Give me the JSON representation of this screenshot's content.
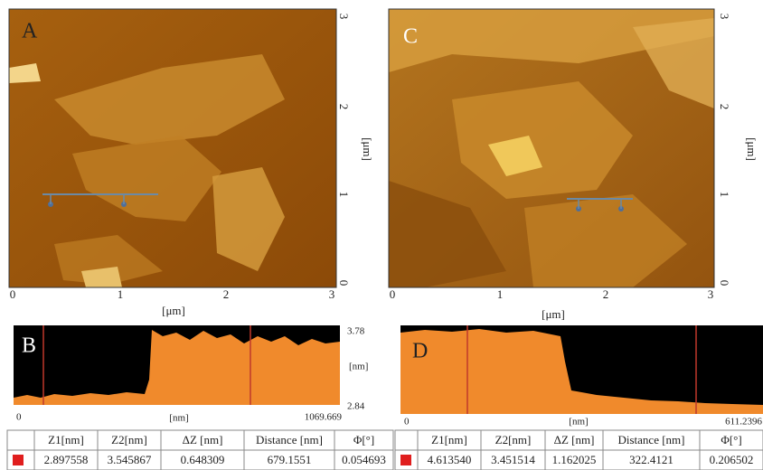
{
  "panel_a": {
    "label": "A",
    "x_ticks": [
      "0",
      "1",
      "2",
      "3"
    ],
    "y_ticks": [
      "0",
      "1",
      "2",
      "3"
    ],
    "x_unit": "[μm]",
    "y_unit": "[μm]"
  },
  "panel_c": {
    "label": "C",
    "x_ticks": [
      "0",
      "1",
      "2",
      "3"
    ],
    "y_ticks": [
      "0",
      "1",
      "2",
      "3"
    ],
    "x_unit": "[μm]",
    "y_unit": "[μm]"
  },
  "panel_b": {
    "label": "B",
    "y_top": "3.78",
    "y_unit": "[nm]",
    "y_bottom": "2.84",
    "x_start": "0",
    "x_unit": "[nm]",
    "x_end": "1069.669"
  },
  "panel_d": {
    "label": "D",
    "x_start": "0",
    "x_unit": "[nm]",
    "x_end": "611.2396"
  },
  "table_b": {
    "headers": [
      "Z1[nm]",
      "Z2[nm]",
      "ΔZ [nm]",
      "Distance [nm]",
      "Φ[°]"
    ],
    "rows": [
      [
        "2.897558",
        "3.545867",
        "0.648309",
        "679.1551",
        "0.054693"
      ]
    ]
  },
  "table_d": {
    "headers": [
      "Z1[nm]",
      "Z2[nm]",
      "ΔZ [nm]",
      "Distance [nm]",
      "Φ[°]"
    ],
    "rows": [
      [
        "4.613540",
        "3.451514",
        "1.162025",
        "322.4121",
        "0.206502"
      ]
    ]
  }
}
